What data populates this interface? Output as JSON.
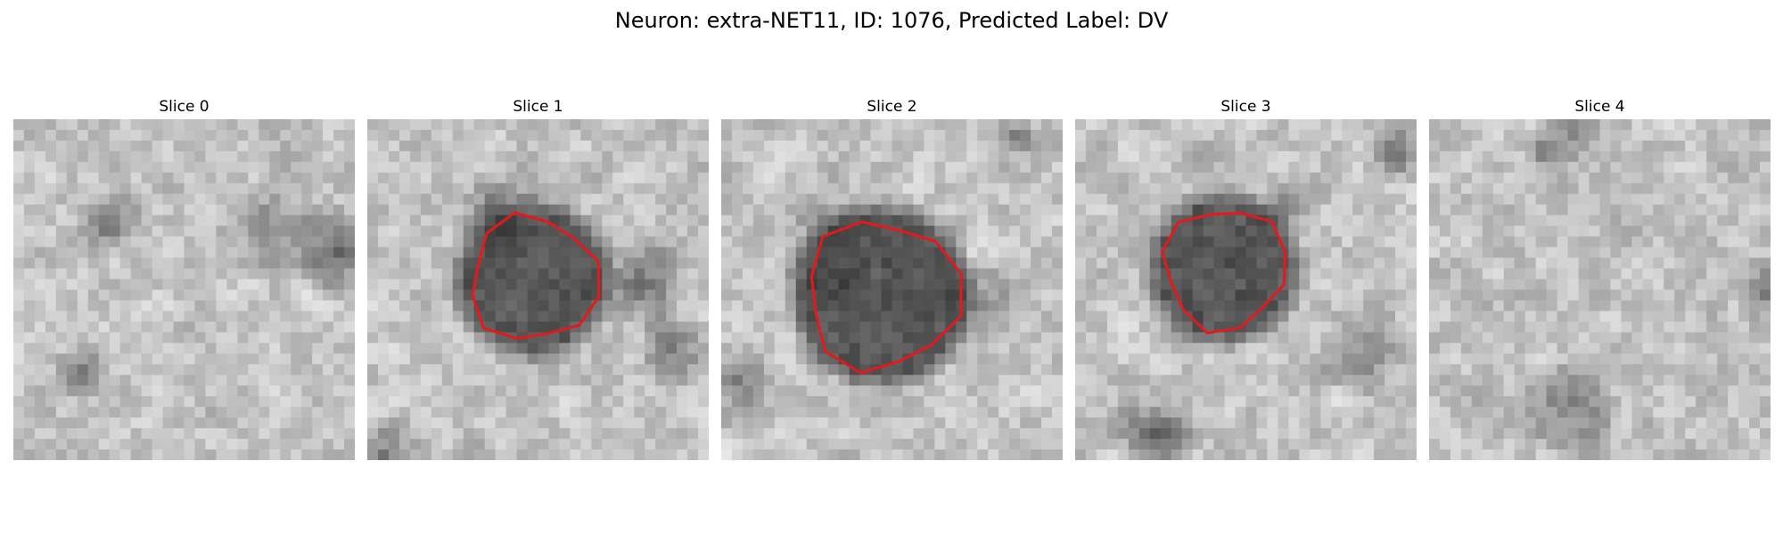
{
  "figure": {
    "title": "Neuron: extra-NET11, ID: 1076, Predicted Label: DV"
  },
  "panels": [
    {
      "title": "Slice 0",
      "seed": 11,
      "blob": null
    },
    {
      "title": "Slice 1",
      "seed": 23,
      "blob": {
        "cx": 15.5,
        "cy": 15.0,
        "r": 6.2,
        "outline": true
      }
    },
    {
      "title": "Slice 2",
      "seed": 37,
      "blob": {
        "cx": 15.0,
        "cy": 16.5,
        "r": 7.4,
        "outline": true
      }
    },
    {
      "title": "Slice 3",
      "seed": 41,
      "blob": {
        "cx": 14.0,
        "cy": 14.0,
        "r": 6.0,
        "outline": true
      }
    },
    {
      "title": "Slice 4",
      "seed": 59,
      "blob": null
    }
  ],
  "colors": {
    "outline": "#e31a1c"
  }
}
